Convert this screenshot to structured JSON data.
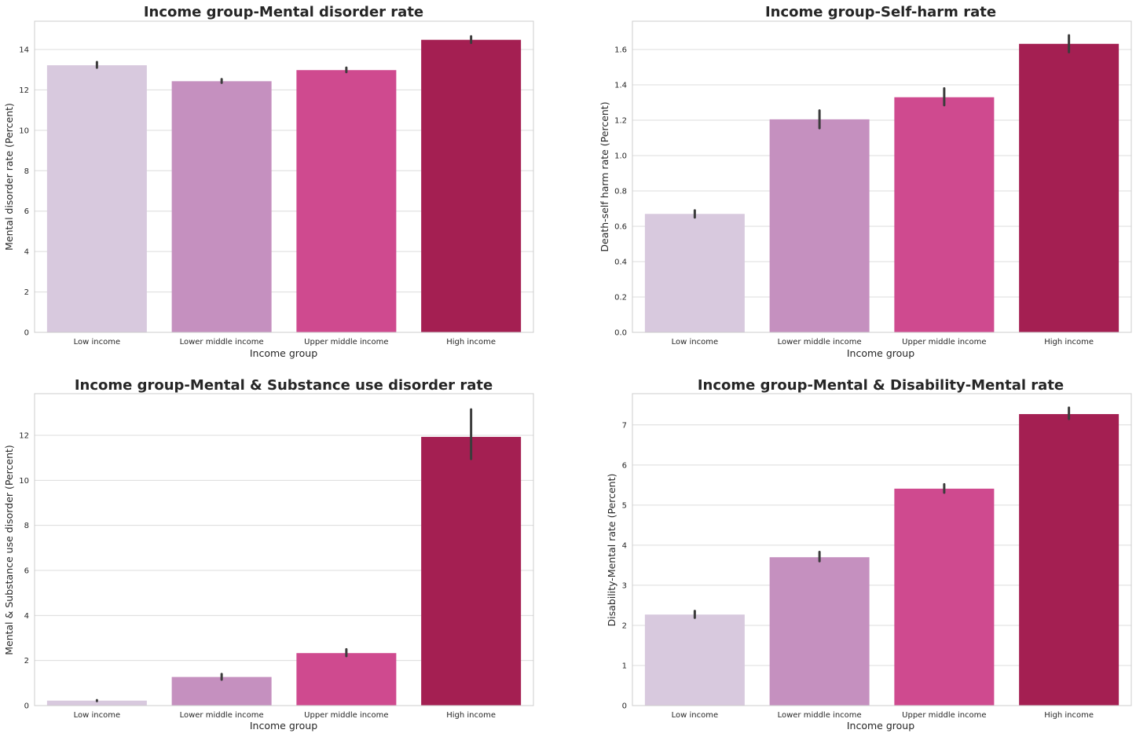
{
  "chart_data": [
    {
      "type": "bar",
      "title": "Income group-Mental disorder rate",
      "xlabel": "Income group",
      "ylabel": "Mental disorder rate (Percent)",
      "categories": [
        "Low income",
        "Lower middle income",
        "Upper middle income",
        "High income"
      ],
      "values": [
        13.22,
        12.43,
        12.98,
        14.48
      ],
      "error": [
        [
          13.1,
          13.38
        ],
        [
          12.35,
          12.53
        ],
        [
          12.88,
          13.1
        ],
        [
          14.33,
          14.65
        ]
      ],
      "ylim": [
        0,
        15.4
      ],
      "yticks": [
        0,
        2,
        4,
        6,
        8,
        10,
        12,
        14
      ],
      "ytick_labels": [
        "0",
        "2",
        "4",
        "6",
        "8",
        "10",
        "12",
        "14"
      ],
      "grid": true
    },
    {
      "type": "bar",
      "title": "Income group-Self-harm rate",
      "xlabel": "Income group",
      "ylabel": "Death-self harm rate (Percent)",
      "categories": [
        "Low income",
        "Lower middle income",
        "Upper middle income",
        "High income"
      ],
      "values": [
        0.67,
        1.205,
        1.33,
        1.632
      ],
      "error": [
        [
          0.65,
          0.69
        ],
        [
          1.155,
          1.255
        ],
        [
          1.285,
          1.38
        ],
        [
          1.585,
          1.68
        ]
      ],
      "ylim": [
        0,
        1.76
      ],
      "yticks": [
        0,
        0.2,
        0.4,
        0.6,
        0.8,
        1.0,
        1.2,
        1.4,
        1.6
      ],
      "ytick_labels": [
        "0.0",
        "0.2",
        "0.4",
        "0.6",
        "0.8",
        "1.0",
        "1.2",
        "1.4",
        "1.6"
      ],
      "grid": true
    },
    {
      "type": "bar",
      "title": "Income group-Mental & Substance use disorder rate",
      "xlabel": "Income group",
      "ylabel": "Mental & Substance use disorder (Percent)",
      "categories": [
        "Low income",
        "Lower middle income",
        "Upper middle income",
        "High income"
      ],
      "values": [
        0.22,
        1.27,
        2.33,
        11.93
      ],
      "error": [
        [
          0.2,
          0.24
        ],
        [
          1.15,
          1.4
        ],
        [
          2.2,
          2.5
        ],
        [
          10.95,
          13.15
        ]
      ],
      "ylim": [
        0,
        13.85
      ],
      "yticks": [
        0,
        2,
        4,
        6,
        8,
        10,
        12
      ],
      "ytick_labels": [
        "0",
        "2",
        "4",
        "6",
        "8",
        "10",
        "12"
      ],
      "grid": true
    },
    {
      "type": "bar",
      "title": "Income group-Mental & Disability-Mental rate",
      "xlabel": "Income group",
      "ylabel": "Disability-Mental rate (Percent)",
      "categories": [
        "Low income",
        "Lower middle income",
        "Upper middle income",
        "High income"
      ],
      "values": [
        2.27,
        3.7,
        5.41,
        7.27
      ],
      "error": [
        [
          2.19,
          2.36
        ],
        [
          3.6,
          3.83
        ],
        [
          5.31,
          5.52
        ],
        [
          7.15,
          7.43
        ]
      ],
      "ylim": [
        0,
        7.78
      ],
      "yticks": [
        0,
        1,
        2,
        3,
        4,
        5,
        6,
        7
      ],
      "ytick_labels": [
        "0",
        "1",
        "2",
        "3",
        "4",
        "5",
        "6",
        "7"
      ],
      "grid": true
    }
  ],
  "colors": {
    "bars": [
      "#d8c9de",
      "#c590bf",
      "#cf4a8f",
      "#a41f52"
    ],
    "error_bar": "#3c3c3c",
    "grid": "#dcdcdc",
    "frame": "#cccccc",
    "text": "#262626"
  }
}
